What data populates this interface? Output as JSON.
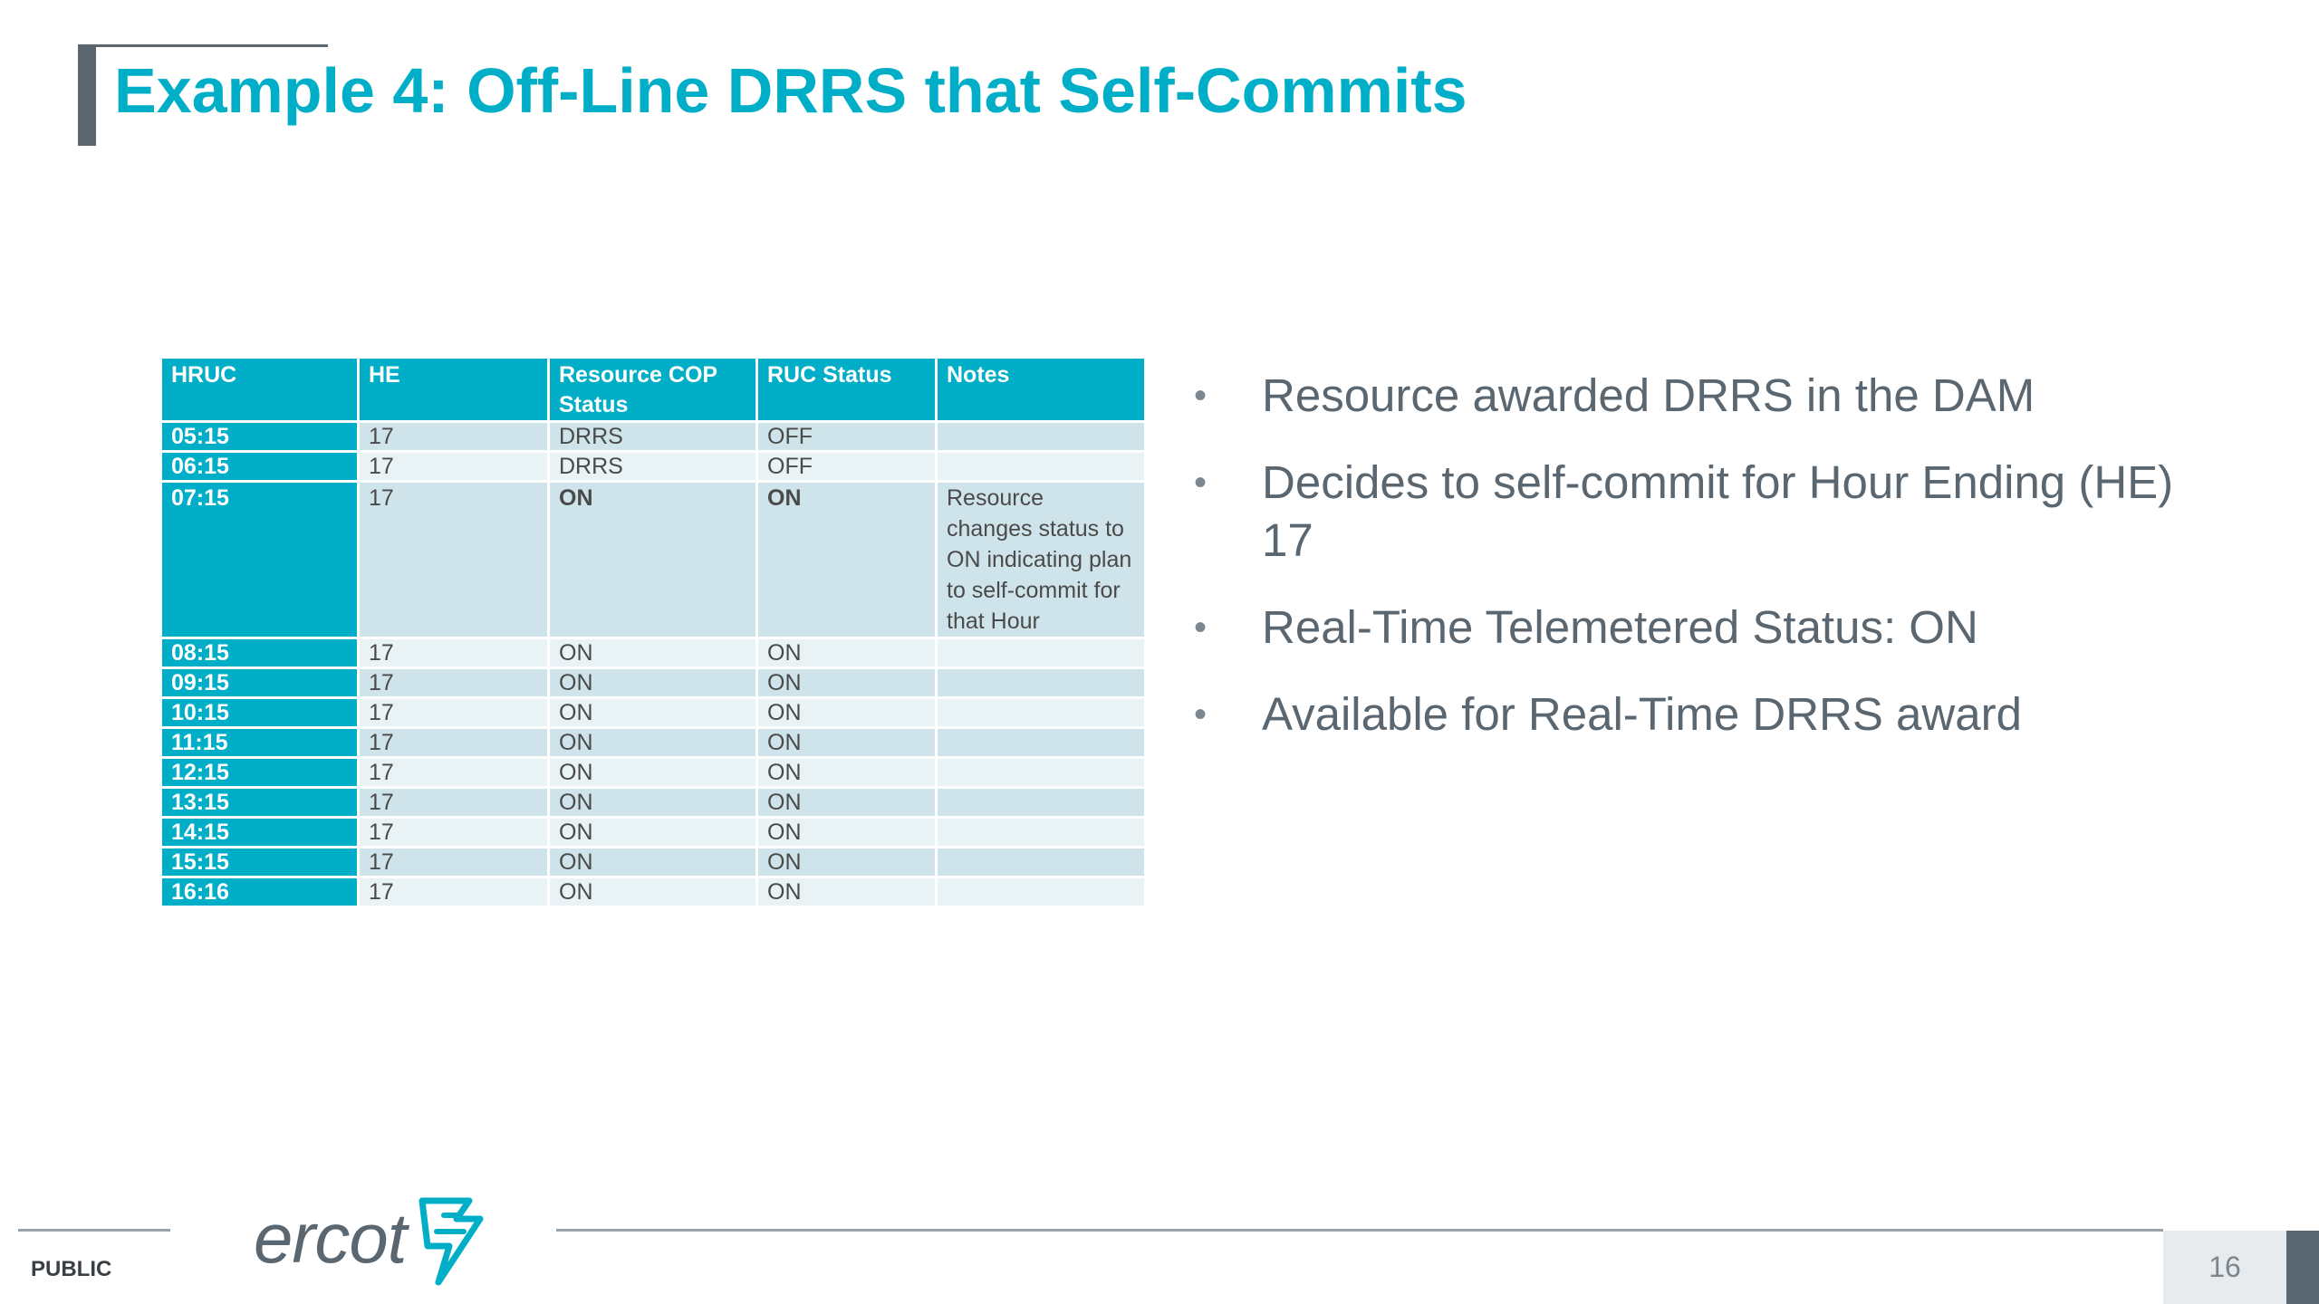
{
  "title": "Example 4: Off-Line DRRS that Self-Commits",
  "table": {
    "headers": [
      "HRUC",
      "HE",
      "Resource COP Status",
      "RUC Status",
      "Notes"
    ],
    "rows": [
      {
        "hruc": "05:15",
        "he": "17",
        "cop": "DRRS",
        "ruc": "OFF",
        "notes": ""
      },
      {
        "hruc": "06:15",
        "he": "17",
        "cop": "DRRS",
        "ruc": "OFF",
        "notes": ""
      },
      {
        "hruc": "07:15",
        "he": "17",
        "cop": "ON",
        "ruc": "ON",
        "notes": "Resource changes status to ON indicating plan to self-commit for that Hour"
      },
      {
        "hruc": "08:15",
        "he": "17",
        "cop": "ON",
        "ruc": "ON",
        "notes": ""
      },
      {
        "hruc": "09:15",
        "he": "17",
        "cop": "ON",
        "ruc": "ON",
        "notes": ""
      },
      {
        "hruc": "10:15",
        "he": "17",
        "cop": "ON",
        "ruc": "ON",
        "notes": ""
      },
      {
        "hruc": "11:15",
        "he": "17",
        "cop": "ON",
        "ruc": "ON",
        "notes": ""
      },
      {
        "hruc": "12:15",
        "he": "17",
        "cop": "ON",
        "ruc": "ON",
        "notes": ""
      },
      {
        "hruc": "13:15",
        "he": "17",
        "cop": "ON",
        "ruc": "ON",
        "notes": ""
      },
      {
        "hruc": "14:15",
        "he": "17",
        "cop": "ON",
        "ruc": "ON",
        "notes": ""
      },
      {
        "hruc": "15:15",
        "he": "17",
        "cop": "ON",
        "ruc": "ON",
        "notes": ""
      },
      {
        "hruc": "16:16",
        "he": "17",
        "cop": "ON",
        "ruc": "ON",
        "notes": ""
      }
    ]
  },
  "bullets": [
    "Resource awarded DRRS in the DAM",
    "Decides to self-commit for Hour Ending (HE) 17",
    "Real-Time Telemetered Status: ON",
    "Available for Real-Time DRRS award"
  ],
  "footer": {
    "classification": "PUBLIC",
    "logo_text": "ercot",
    "page_number": "16"
  },
  "colors": {
    "accent": "#00aec7",
    "text_gray": "#5b6770",
    "row_dark": "#cfe4ea",
    "row_light": "#e9f2f5"
  },
  "icons": {
    "logo_mark": "ercot-lightning-bolt-icon"
  }
}
